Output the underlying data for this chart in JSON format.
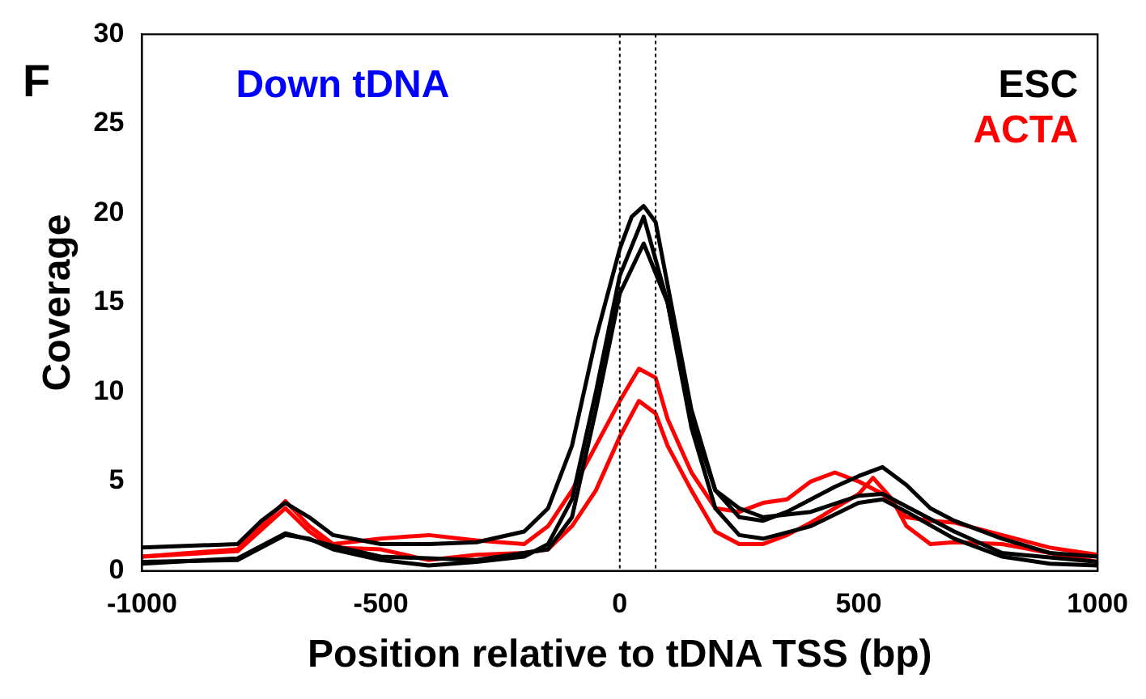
{
  "chart_data": {
    "type": "line",
    "xlabel": "Position relative to tDNA TSS (bp)",
    "ylabel": "Coverage",
    "annotations": [
      "F",
      "Down tDNA"
    ],
    "xlim": [
      -1000,
      1000
    ],
    "xticks": [
      -1000,
      -500,
      0,
      500,
      1000
    ],
    "ylim": [
      0,
      30
    ],
    "yticks": [
      0,
      5,
      10,
      15,
      20,
      25,
      30
    ],
    "grid": false,
    "legend": "top right",
    "marker": "none",
    "line_style": "solid",
    "ref_lines": [
      {
        "axis": "x",
        "value": 0,
        "color": "#000000",
        "line_style": "dotted"
      },
      {
        "axis": "x",
        "value": 75,
        "color": "#000000",
        "line_style": "dotted"
      }
    ],
    "series": [
      {
        "name": "ESC",
        "color": "#000000",
        "x": [
          -1000,
          -800,
          -750,
          -700,
          -650,
          -600,
          -500,
          -400,
          -300,
          -200,
          -150,
          -100,
          -50,
          0,
          25,
          50,
          75,
          100,
          150,
          200,
          250,
          300,
          350,
          400,
          450,
          500,
          550,
          600,
          650,
          700,
          800,
          900,
          1000
        ],
        "values": [
          1.3,
          1.5,
          2.8,
          3.8,
          3.0,
          2.0,
          1.5,
          1.5,
          1.6,
          2.2,
          3.5,
          7,
          13,
          18,
          19.8,
          20.4,
          19.5,
          16,
          9,
          4.5,
          3,
          2.8,
          3.3,
          4,
          4.7,
          5.3,
          5.8,
          4.8,
          3.5,
          2.8,
          1.8,
          1,
          0.8
        ]
      },
      {
        "color": "#000000",
        "x": [
          -1000,
          -800,
          -750,
          -700,
          -650,
          -600,
          -500,
          -400,
          -300,
          -200,
          -150,
          -100,
          -50,
          0,
          50,
          100,
          150,
          200,
          250,
          300,
          400,
          500,
          550,
          600,
          700,
          800,
          900,
          1000
        ],
        "values": [
          0.5,
          0.6,
          1.3,
          2.0,
          1.8,
          1.2,
          0.6,
          0.3,
          0.5,
          0.8,
          1.5,
          4,
          10,
          16.5,
          19.8,
          15,
          8,
          3.5,
          2,
          1.8,
          2.5,
          3.8,
          4,
          3.3,
          1.8,
          0.8,
          0.4,
          0.3
        ]
      },
      {
        "color": "#000000",
        "x": [
          -1000,
          -800,
          -700,
          -600,
          -500,
          -300,
          -150,
          -100,
          -50,
          0,
          50,
          100,
          150,
          200,
          250,
          300,
          400,
          500,
          550,
          600,
          700,
          800,
          1000
        ],
        "values": [
          0.4,
          0.7,
          2.1,
          1.4,
          0.8,
          0.6,
          1.2,
          3,
          9,
          15.5,
          18.3,
          15,
          8.5,
          4.5,
          3.5,
          3,
          3.3,
          4.2,
          4.3,
          3.6,
          2.2,
          1,
          0.5
        ]
      },
      {
        "name": "ACTA",
        "color": "#ff0000",
        "x": [
          -1000,
          -800,
          -750,
          -700,
          -650,
          -600,
          -500,
          -400,
          -300,
          -200,
          -150,
          -100,
          -50,
          0,
          40,
          75,
          100,
          150,
          200,
          250,
          300,
          350,
          400,
          450,
          500,
          550,
          600,
          650,
          700,
          800,
          900,
          1000
        ],
        "values": [
          0.8,
          1.2,
          2.5,
          3.9,
          2.5,
          1.5,
          1.8,
          2,
          1.7,
          1.5,
          2.5,
          4.5,
          7,
          9.5,
          11.3,
          10.8,
          8.5,
          5.5,
          3.5,
          3.3,
          3.8,
          4,
          5,
          5.5,
          5,
          4.3,
          3,
          2.8,
          2.7,
          2,
          1.3,
          0.9
        ]
      },
      {
        "color": "#ff0000",
        "x": [
          -1000,
          -800,
          -700,
          -650,
          -600,
          -500,
          -400,
          -300,
          -200,
          -150,
          -100,
          -50,
          0,
          40,
          75,
          100,
          150,
          200,
          250,
          300,
          350,
          400,
          450,
          500,
          530,
          570,
          600,
          650,
          700,
          800,
          900,
          1000
        ],
        "values": [
          0.8,
          1.1,
          3.5,
          2.2,
          1.3,
          1.2,
          0.6,
          0.9,
          1,
          1.2,
          2.5,
          4.5,
          7.5,
          9.5,
          8.8,
          7,
          4.5,
          2.2,
          1.5,
          1.5,
          2,
          2.7,
          3.5,
          4.3,
          5.2,
          4,
          2.5,
          1.5,
          1.6,
          1.5,
          1,
          0.5
        ]
      }
    ]
  }
}
